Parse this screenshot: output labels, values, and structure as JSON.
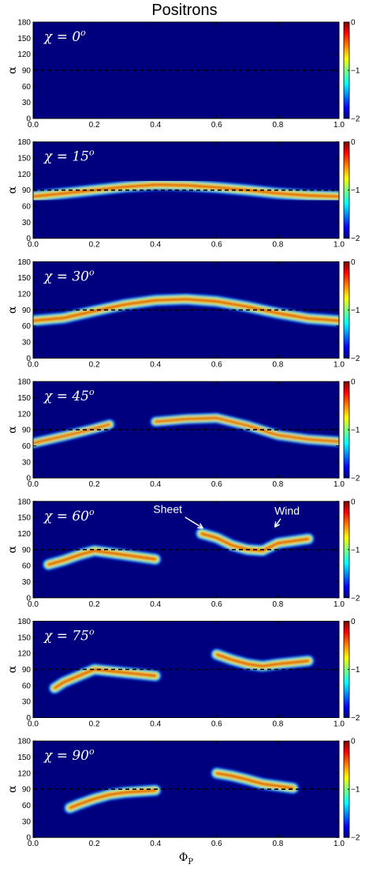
{
  "figure": {
    "title": "Positrons",
    "xlabel": "ΦP",
    "xlabel_main": "Φ",
    "xlabel_sub": "P",
    "ylabel": "α"
  },
  "chart_data": [
    {
      "type": "heatmap",
      "label": "χ = 0°",
      "label_main": "χ = 0",
      "label_sup": "o",
      "chi": 0,
      "xlim": [
        0,
        1
      ],
      "ylim": [
        0,
        180
      ],
      "xticks": [
        0.0,
        0.2,
        0.4,
        0.6,
        0.8,
        1.0
      ],
      "xtick_labels": [
        "0.0",
        "0.2",
        "0.4",
        "0.6",
        "0.8",
        "1.0"
      ],
      "yticks": [
        0,
        30,
        60,
        90,
        120,
        150,
        180
      ],
      "ytick_labels": [
        "0",
        "30",
        "60",
        "90",
        "120",
        "150",
        "180"
      ],
      "colorbar": {
        "range": [
          -2,
          0
        ],
        "ticks": [
          0,
          -1,
          -2
        ],
        "tick_labels": [
          "0",
          "−1",
          "−2"
        ]
      },
      "reference_line_alpha": 90,
      "ridge": {
        "phi": [
          0.0,
          0.1,
          0.2,
          0.3,
          0.4,
          0.5,
          0.6,
          0.7,
          0.8,
          0.9,
          1.0
        ],
        "alpha": [
          90,
          90,
          90,
          90,
          90,
          90,
          90,
          90,
          90,
          90,
          90
        ],
        "half_width": 8,
        "peak": 0,
        "phi_range": [
          0.0,
          1.0
        ]
      },
      "annotations": []
    },
    {
      "type": "heatmap",
      "label": "χ = 15°",
      "label_main": "χ = 15",
      "label_sup": "o",
      "chi": 15,
      "xlim": [
        0,
        1
      ],
      "ylim": [
        0,
        180
      ],
      "xticks": [
        0.0,
        0.2,
        0.4,
        0.6,
        0.8,
        1.0
      ],
      "xtick_labels": [
        "0.0",
        "0.2",
        "0.4",
        "0.6",
        "0.8",
        "1.0"
      ],
      "yticks": [
        0,
        30,
        60,
        90,
        120,
        150,
        180
      ],
      "ytick_labels": [
        "0",
        "30",
        "60",
        "90",
        "120",
        "150",
        "180"
      ],
      "colorbar": {
        "range": [
          -2,
          0
        ],
        "ticks": [
          0,
          -1,
          -2
        ],
        "tick_labels": [
          "0",
          "−1",
          "−2"
        ]
      },
      "reference_line_alpha": 90,
      "ridge": {
        "phi": [
          0.0,
          0.1,
          0.2,
          0.3,
          0.4,
          0.5,
          0.6,
          0.7,
          0.8,
          0.9,
          1.0
        ],
        "alpha": [
          78,
          84,
          90,
          96,
          100,
          99,
          95,
          90,
          84,
          80,
          78
        ],
        "half_width": 10,
        "peak": -0.1,
        "phi_range": [
          0.0,
          1.0
        ]
      },
      "annotations": []
    },
    {
      "type": "heatmap",
      "label": "χ = 30°",
      "label_main": "χ = 30",
      "label_sup": "o",
      "chi": 30,
      "xlim": [
        0,
        1
      ],
      "ylim": [
        0,
        180
      ],
      "xticks": [
        0.0,
        0.2,
        0.4,
        0.6,
        0.8,
        1.0
      ],
      "xtick_labels": [
        "0.0",
        "0.2",
        "0.4",
        "0.6",
        "0.8",
        "1.0"
      ],
      "yticks": [
        0,
        30,
        60,
        90,
        120,
        150,
        180
      ],
      "ytick_labels": [
        "0",
        "30",
        "60",
        "90",
        "120",
        "150",
        "180"
      ],
      "colorbar": {
        "range": [
          -2,
          0
        ],
        "ticks": [
          0,
          -1,
          -2
        ],
        "tick_labels": [
          "0",
          "−1",
          "−2"
        ]
      },
      "reference_line_alpha": 90,
      "ridge": {
        "phi": [
          0.0,
          0.1,
          0.2,
          0.3,
          0.4,
          0.5,
          0.6,
          0.7,
          0.8,
          0.9,
          1.0
        ],
        "alpha": [
          70,
          75,
          88,
          100,
          108,
          110,
          106,
          96,
          84,
          74,
          70
        ],
        "half_width": 10,
        "peak": -0.1,
        "phi_range": [
          0.0,
          1.0
        ]
      },
      "annotations": []
    },
    {
      "type": "heatmap",
      "label": "χ = 45°",
      "label_main": "χ = 45",
      "label_sup": "o",
      "chi": 45,
      "xlim": [
        0,
        1
      ],
      "ylim": [
        0,
        180
      ],
      "xticks": [
        0.0,
        0.2,
        0.4,
        0.6,
        0.8,
        1.0
      ],
      "xtick_labels": [
        "0.0",
        "0.2",
        "0.4",
        "0.6",
        "0.8",
        "1.0"
      ],
      "yticks": [
        0,
        30,
        60,
        90,
        120,
        150,
        180
      ],
      "ytick_labels": [
        "0",
        "30",
        "60",
        "90",
        "120",
        "150",
        "180"
      ],
      "colorbar": {
        "range": [
          -2,
          0
        ],
        "ticks": [
          0,
          -1,
          -2
        ],
        "tick_labels": [
          "0",
          "−1",
          "−2"
        ]
      },
      "reference_line_alpha": 90,
      "ridge": {
        "phi": [
          0.0,
          0.1,
          0.2,
          0.25,
          0.4,
          0.5,
          0.6,
          0.7,
          0.8,
          0.9,
          1.0
        ],
        "alpha": [
          65,
          78,
          92,
          100,
          105,
          110,
          112,
          98,
          80,
          72,
          68
        ],
        "half_width": 9,
        "peak": -0.15,
        "phi_range": [
          0.0,
          1.0
        ]
      },
      "annotations": []
    },
    {
      "type": "heatmap",
      "label": "χ = 60°",
      "label_main": "χ = 60",
      "label_sup": "o",
      "chi": 60,
      "xlim": [
        0,
        1
      ],
      "ylim": [
        0,
        180
      ],
      "xticks": [
        0.0,
        0.2,
        0.4,
        0.6,
        0.8,
        1.0
      ],
      "xtick_labels": [
        "0.0",
        "0.2",
        "0.4",
        "0.6",
        "0.8",
        "1.0"
      ],
      "yticks": [
        0,
        30,
        60,
        90,
        120,
        150,
        180
      ],
      "ytick_labels": [
        "0",
        "30",
        "60",
        "90",
        "120",
        "150",
        "180"
      ],
      "colorbar": {
        "range": [
          -2,
          0
        ],
        "ticks": [
          0,
          -1,
          -2
        ],
        "tick_labels": [
          "0",
          "−1",
          "−2"
        ]
      },
      "reference_line_alpha": 90,
      "ridge": {
        "phi": [
          0.05,
          0.1,
          0.15,
          0.2,
          0.3,
          0.4,
          0.55,
          0.6,
          0.65,
          0.7,
          0.75,
          0.8,
          0.9
        ],
        "alpha": [
          62,
          70,
          80,
          88,
          80,
          72,
          120,
          112,
          98,
          90,
          88,
          102,
          110
        ],
        "half_width": 10,
        "peak": -0.1,
        "phi_range": [
          0.05,
          0.92
        ]
      },
      "annotations": [
        {
          "text": "Sheet",
          "text_phi": 0.44,
          "text_alpha": 158,
          "arrow_to_phi": 0.555,
          "arrow_to_alpha": 130
        },
        {
          "text": "Wind",
          "text_phi": 0.83,
          "text_alpha": 155,
          "arrow_to_phi": 0.79,
          "arrow_to_alpha": 132
        }
      ]
    },
    {
      "type": "heatmap",
      "label": "χ = 75°",
      "label_main": "χ = 75",
      "label_sup": "o",
      "chi": 75,
      "xlim": [
        0,
        1
      ],
      "ylim": [
        0,
        180
      ],
      "xticks": [
        0.0,
        0.2,
        0.4,
        0.6,
        0.8,
        1.0
      ],
      "xtick_labels": [
        "0.0",
        "0.2",
        "0.4",
        "0.6",
        "0.8",
        "1.0"
      ],
      "yticks": [
        0,
        30,
        60,
        90,
        120,
        150,
        180
      ],
      "ytick_labels": [
        "0",
        "30",
        "60",
        "90",
        "120",
        "150",
        "180"
      ],
      "colorbar": {
        "range": [
          -2,
          0
        ],
        "ticks": [
          0,
          -1,
          -2
        ],
        "tick_labels": [
          "0",
          "−1",
          "−2"
        ]
      },
      "reference_line_alpha": 90,
      "ridge": {
        "phi": [
          0.07,
          0.1,
          0.15,
          0.2,
          0.3,
          0.4,
          0.6,
          0.65,
          0.7,
          0.75,
          0.8,
          0.9
        ],
        "alpha": [
          55,
          66,
          78,
          90,
          84,
          78,
          118,
          108,
          100,
          96,
          100,
          106
        ],
        "half_width": 10,
        "peak": -0.1,
        "phi_range": [
          0.07,
          0.92
        ]
      },
      "annotations": []
    },
    {
      "type": "heatmap",
      "label": "χ = 90°",
      "label_main": "χ = 90",
      "label_sup": "o",
      "chi": 90,
      "xlim": [
        0,
        1
      ],
      "ylim": [
        0,
        180
      ],
      "xticks": [
        0.0,
        0.2,
        0.4,
        0.6,
        0.8,
        1.0
      ],
      "xtick_labels": [
        "0.0",
        "0.2",
        "0.4",
        "0.6",
        "0.8",
        "1.0"
      ],
      "yticks": [
        0,
        30,
        60,
        90,
        120,
        150,
        180
      ],
      "ytick_labels": [
        "0",
        "30",
        "60",
        "90",
        "120",
        "150",
        "180"
      ],
      "colorbar": {
        "range": [
          -2,
          0
        ],
        "ticks": [
          0,
          -1,
          -2
        ],
        "tick_labels": [
          "0",
          "−1",
          "−2"
        ]
      },
      "reference_line_alpha": 90,
      "ridge": {
        "phi": [
          0.12,
          0.15,
          0.2,
          0.25,
          0.3,
          0.4,
          0.6,
          0.65,
          0.7,
          0.75,
          0.8,
          0.85
        ],
        "alpha": [
          55,
          62,
          72,
          80,
          84,
          88,
          120,
          115,
          108,
          100,
          96,
          92
        ],
        "half_width": 10,
        "peak": -0.1,
        "phi_range": [
          0.12,
          0.86
        ]
      },
      "annotations": []
    }
  ]
}
